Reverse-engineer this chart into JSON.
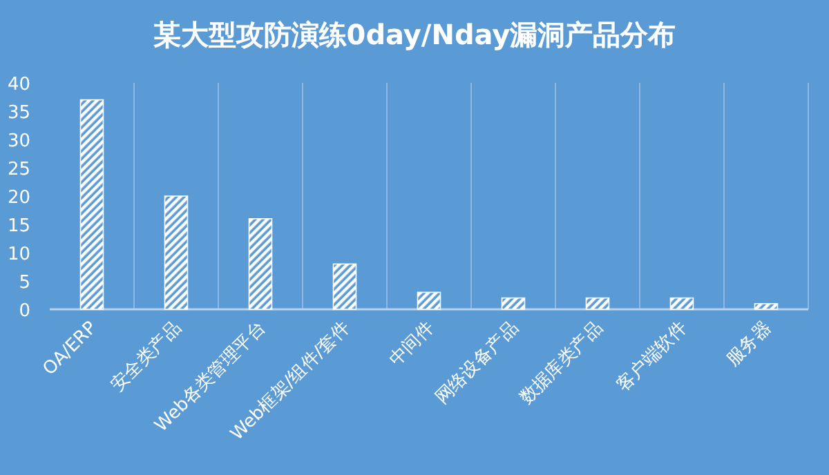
{
  "chart_data": {
    "type": "bar",
    "title": "某大型攻防演练0day/Nday漏洞产品分布",
    "categories": [
      "OA/ERP",
      "安全类产品",
      "Web各类管理平台",
      "Web框架/组件/套件",
      "中间件",
      "网络设备产品",
      "数据库类产品",
      "客户端软件",
      "服务器"
    ],
    "values": [
      37,
      20,
      16,
      8,
      3,
      2,
      2,
      2,
      1
    ],
    "color": "#ffffff",
    "ylim": [
      0,
      40
    ],
    "yticks": [
      0,
      5,
      10,
      15,
      20,
      25,
      30,
      35,
      40
    ],
    "grid": "x"
  }
}
